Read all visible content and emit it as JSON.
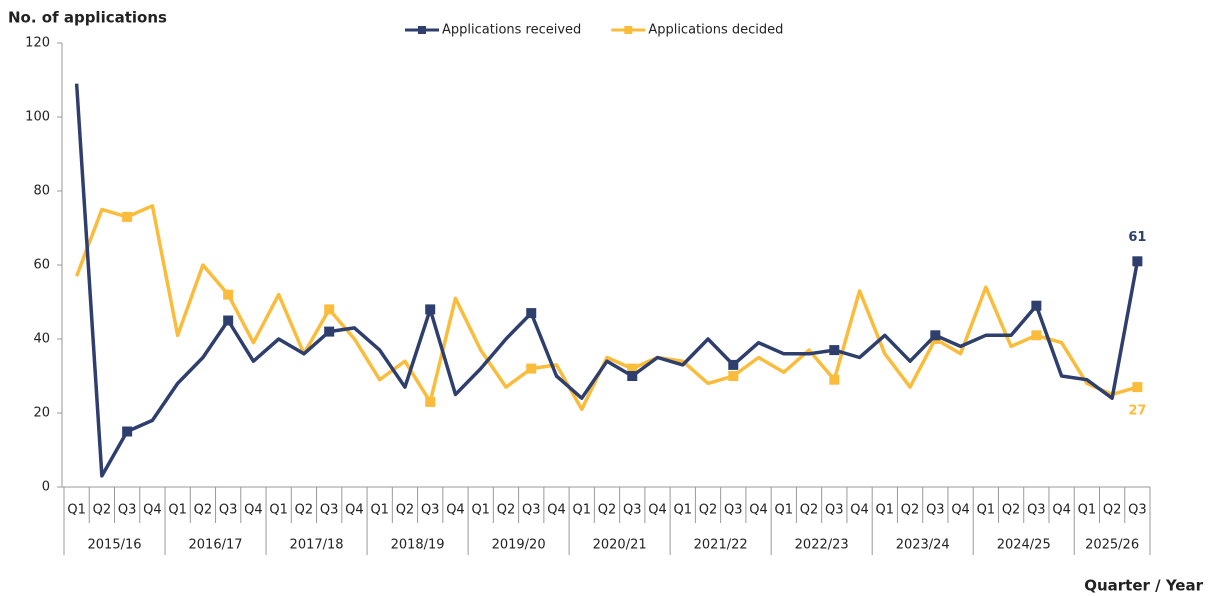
{
  "chart_data": {
    "type": "line",
    "y_label": "No. of applications",
    "x_label": "Quarter / Year",
    "categories": [
      "Q1",
      "Q2",
      "Q3",
      "Q4",
      "Q1",
      "Q2",
      "Q3",
      "Q4",
      "Q1",
      "Q2",
      "Q3",
      "Q4",
      "Q1",
      "Q2",
      "Q3",
      "Q4",
      "Q1",
      "Q2",
      "Q3",
      "Q4",
      "Q1",
      "Q2",
      "Q3",
      "Q4",
      "Q1",
      "Q2",
      "Q3",
      "Q4",
      "Q1",
      "Q2",
      "Q3",
      "Q4",
      "Q1",
      "Q2",
      "Q3",
      "Q4",
      "Q1",
      "Q2",
      "Q3",
      "Q4",
      "Q1",
      "Q2",
      "Q3"
    ],
    "years": [
      "2015/16",
      "2016/17",
      "2017/18",
      "2018/19",
      "2019/20",
      "2020/21",
      "2021/22",
      "2022/23",
      "2023/24",
      "2024/25",
      "2025/26"
    ],
    "series": [
      {
        "name": "Applications received",
        "color": "#2e3f6e",
        "values": [
          109,
          3,
          15,
          18,
          28,
          35,
          45,
          34,
          40,
          36,
          42,
          43,
          37,
          27,
          48,
          25,
          32,
          40,
          47,
          30,
          24,
          34,
          30,
          35,
          33,
          40,
          33,
          39,
          36,
          36,
          37,
          35,
          41,
          34,
          41,
          38,
          41,
          41,
          49,
          30,
          29,
          24,
          61
        ]
      },
      {
        "name": "Applications decided",
        "color": "#fbbc3b",
        "values": [
          57,
          75,
          73,
          76,
          41,
          60,
          52,
          39,
          52,
          36,
          48,
          40,
          29,
          34,
          23,
          51,
          37,
          27,
          32,
          33,
          21,
          35,
          32,
          35,
          34,
          28,
          30,
          35,
          31,
          37,
          29,
          53,
          36,
          27,
          40,
          36,
          54,
          38,
          41,
          39,
          28,
          25,
          27
        ]
      }
    ],
    "ylim": [
      0,
      120
    ],
    "yticks": [
      0,
      20,
      40,
      60,
      80,
      100,
      120
    ],
    "legend": "top"
  }
}
